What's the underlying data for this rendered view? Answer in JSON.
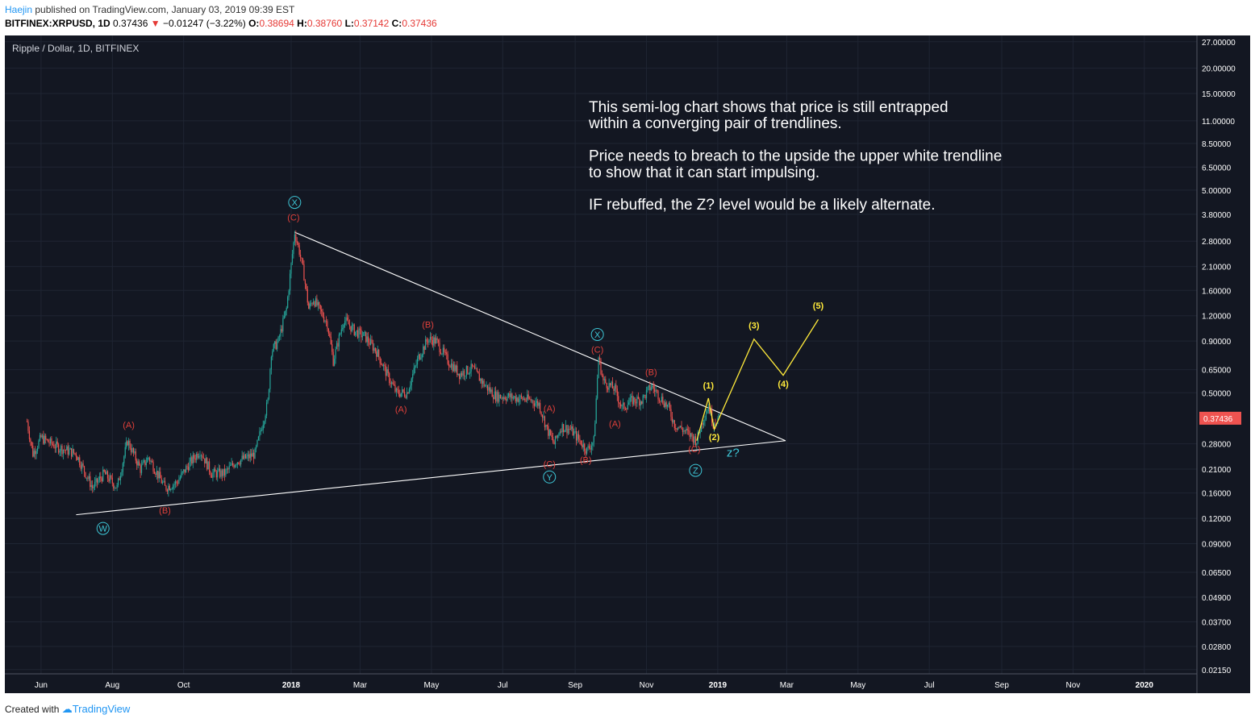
{
  "header": {
    "author": "Haejin",
    "published_text": " published on TradingView.com, January 03, 2019 09:39 EST",
    "symbol": "BITFINEX:XRPUSD, 1D",
    "last": "0.37436",
    "change": "−0.01247 (−3.22%)",
    "o_label": "O:",
    "o": "0.38694",
    "h_label": "H:",
    "h": "0.38760",
    "l_label": "L:",
    "l": "0.37142",
    "c_label": "C:",
    "c": "0.37436"
  },
  "footer": {
    "created_with": "Created with",
    "brand": "TradingView"
  },
  "colors": {
    "background": "#131722",
    "up": "#26a69a",
    "down": "#ef5350",
    "annotation_red": "#e0403a",
    "annotation_cyan": "#3ec6d6",
    "annotation_yellow": "#ffea3b",
    "trendline": "#ffffff"
  },
  "chart_data": {
    "type": "candlestick",
    "title": "Ripple / Dollar, 1D, BITFINEX",
    "y_scale": "log",
    "ylim": [
      0.0205,
      29
    ],
    "xlim": [
      "2017-05-01",
      "2020-02-15"
    ],
    "x_tick_labels": [
      "Jun",
      "Aug",
      "Oct",
      "2018",
      "Mar",
      "May",
      "Jul",
      "Sep",
      "Nov",
      "2019",
      "Mar",
      "May",
      "Jul",
      "Sep",
      "Nov",
      "2020"
    ],
    "x_tick_dates": [
      "2017-06-01",
      "2017-08-01",
      "2017-10-01",
      "2018-01-01",
      "2018-03-01",
      "2018-05-01",
      "2018-07-01",
      "2018-09-01",
      "2018-11-01",
      "2019-01-01",
      "2019-03-01",
      "2019-05-01",
      "2019-07-01",
      "2019-09-01",
      "2019-11-01",
      "2020-01-01"
    ],
    "y_tick_labels": [
      "27.00000",
      "20.00000",
      "15.00000",
      "11.00000",
      "8.50000",
      "6.50000",
      "5.00000",
      "3.80000",
      "2.80000",
      "2.10000",
      "1.60000",
      "1.20000",
      "0.90000",
      "0.65000",
      "0.50000",
      "0.28000",
      "0.21000",
      "0.16000",
      "0.12000",
      "0.09000",
      "0.06500",
      "0.04900",
      "0.03700",
      "0.02800",
      "0.02150"
    ],
    "last_price_label": "0.37436",
    "price_path": [
      [
        "2017-05-20",
        0.36
      ],
      [
        "2017-05-25",
        0.25
      ],
      [
        "2017-06-01",
        0.3
      ],
      [
        "2017-06-15",
        0.27
      ],
      [
        "2017-07-01",
        0.25
      ],
      [
        "2017-07-15",
        0.17
      ],
      [
        "2017-07-25",
        0.2
      ],
      [
        "2017-08-05",
        0.17
      ],
      [
        "2017-08-14",
        0.29
      ],
      [
        "2017-08-25",
        0.21
      ],
      [
        "2017-09-01",
        0.24
      ],
      [
        "2017-09-15",
        0.17
      ],
      [
        "2017-09-25",
        0.18
      ],
      [
        "2017-10-05",
        0.22
      ],
      [
        "2017-10-15",
        0.26
      ],
      [
        "2017-10-25",
        0.2
      ],
      [
        "2017-11-05",
        0.2
      ],
      [
        "2017-11-15",
        0.23
      ],
      [
        "2017-11-25",
        0.24
      ],
      [
        "2017-12-01",
        0.25
      ],
      [
        "2017-12-12",
        0.45
      ],
      [
        "2017-12-15",
        0.8
      ],
      [
        "2017-12-21",
        0.9
      ],
      [
        "2017-12-28",
        1.3
      ],
      [
        "2018-01-04",
        3.1
      ],
      [
        "2018-01-08",
        2.5
      ],
      [
        "2018-01-12",
        1.9
      ],
      [
        "2018-01-16",
        1.3
      ],
      [
        "2018-01-20",
        1.45
      ],
      [
        "2018-02-01",
        1.1
      ],
      [
        "2018-02-06",
        0.72
      ],
      [
        "2018-02-15",
        1.15
      ],
      [
        "2018-02-25",
        1.0
      ],
      [
        "2018-03-05",
        0.95
      ],
      [
        "2018-03-15",
        0.8
      ],
      [
        "2018-03-25",
        0.6
      ],
      [
        "2018-04-01",
        0.5
      ],
      [
        "2018-04-10",
        0.5
      ],
      [
        "2018-04-20",
        0.75
      ],
      [
        "2018-04-28",
        0.92
      ],
      [
        "2018-05-05",
        0.9
      ],
      [
        "2018-05-15",
        0.72
      ],
      [
        "2018-05-25",
        0.62
      ],
      [
        "2018-06-05",
        0.66
      ],
      [
        "2018-06-15",
        0.55
      ],
      [
        "2018-06-25",
        0.48
      ],
      [
        "2018-07-05",
        0.48
      ],
      [
        "2018-07-15",
        0.47
      ],
      [
        "2018-07-25",
        0.46
      ],
      [
        "2018-08-01",
        0.44
      ],
      [
        "2018-08-08",
        0.33
      ],
      [
        "2018-08-14",
        0.28
      ],
      [
        "2018-08-20",
        0.34
      ],
      [
        "2018-08-28",
        0.33
      ],
      [
        "2018-09-05",
        0.29
      ],
      [
        "2018-09-11",
        0.26
      ],
      [
        "2018-09-17",
        0.29
      ],
      [
        "2018-09-21",
        0.75
      ],
      [
        "2018-09-25",
        0.57
      ],
      [
        "2018-10-05",
        0.52
      ],
      [
        "2018-10-11",
        0.42
      ],
      [
        "2018-10-20",
        0.46
      ],
      [
        "2018-10-28",
        0.46
      ],
      [
        "2018-11-05",
        0.54
      ],
      [
        "2018-11-10",
        0.5
      ],
      [
        "2018-11-20",
        0.42
      ],
      [
        "2018-11-25",
        0.35
      ],
      [
        "2018-12-05",
        0.32
      ],
      [
        "2018-12-14",
        0.29
      ],
      [
        "2018-12-20",
        0.38
      ],
      [
        "2018-12-24",
        0.43
      ],
      [
        "2018-12-28",
        0.36
      ],
      [
        "2019-01-03",
        0.37436
      ]
    ],
    "trendlines": [
      {
        "name": "upper",
        "points": [
          [
            "2018-01-04",
            3.1
          ],
          [
            "2019-02-28",
            0.29
          ]
        ]
      },
      {
        "name": "lower",
        "points": [
          [
            "2017-07-01",
            0.125
          ],
          [
            "2019-02-28",
            0.29
          ]
        ]
      }
    ],
    "projection": [
      [
        "2018-12-14",
        0.29
      ],
      [
        "2018-12-24",
        0.47
      ],
      [
        "2018-12-29",
        0.33
      ],
      [
        "2019-02-01",
        0.92
      ],
      [
        "2019-02-26",
        0.61
      ],
      [
        "2019-03-28",
        1.15
      ]
    ],
    "annotations_red": [
      {
        "text": "(C)",
        "date": "2018-01-03",
        "price": 3.55
      },
      {
        "text": "(A)",
        "date": "2017-08-15",
        "price": 0.335
      },
      {
        "text": "(B)",
        "date": "2017-09-15",
        "price": 0.127
      },
      {
        "text": "(B)",
        "date": "2018-04-28",
        "price": 1.05
      },
      {
        "text": "(A)",
        "date": "2018-04-05",
        "price": 0.4
      },
      {
        "text": "(A)",
        "date": "2018-08-10",
        "price": 0.405
      },
      {
        "text": "(C)",
        "date": "2018-08-10",
        "price": 0.215
      },
      {
        "text": "(B)",
        "date": "2018-09-10",
        "price": 0.225
      },
      {
        "text": "(C)",
        "date": "2018-09-20",
        "price": 0.79
      },
      {
        "text": "(A)",
        "date": "2018-10-05",
        "price": 0.34
      },
      {
        "text": "(B)",
        "date": "2018-11-05",
        "price": 0.61
      },
      {
        "text": "(C)",
        "date": "2018-12-12",
        "price": 0.255
      }
    ],
    "annotations_cyan_circled": [
      {
        "text": "X",
        "date": "2018-01-04",
        "price": 4.35
      },
      {
        "text": "W",
        "date": "2017-07-24",
        "price": 0.107
      },
      {
        "text": "Y",
        "date": "2018-08-10",
        "price": 0.192
      },
      {
        "text": "X",
        "date": "2018-09-20",
        "price": 0.97
      },
      {
        "text": "Z",
        "date": "2018-12-13",
        "price": 0.207
      }
    ],
    "annotation_z_target": {
      "text": "z?",
      "date": "2019-01-14",
      "price": 0.242
    },
    "annotations_yellow": [
      {
        "text": "(1)",
        "date": "2018-12-24",
        "price": 0.525
      },
      {
        "text": "(2)",
        "date": "2018-12-29",
        "price": 0.292
      },
      {
        "text": "(3)",
        "date": "2019-02-01",
        "price": 1.04
      },
      {
        "text": "(4)",
        "date": "2019-02-26",
        "price": 0.535
      },
      {
        "text": "(5)",
        "date": "2019-03-28",
        "price": 1.3
      }
    ],
    "commentary": [
      "This semi-log chart shows that price is still entrapped",
      "within a converging pair of trendlines.",
      "",
      "Price needs to breach to the upside the upper white trendline",
      "to show that it can start impulsing.",
      "",
      "IF rebuffed, the Z? level would be a likely alternate."
    ]
  }
}
